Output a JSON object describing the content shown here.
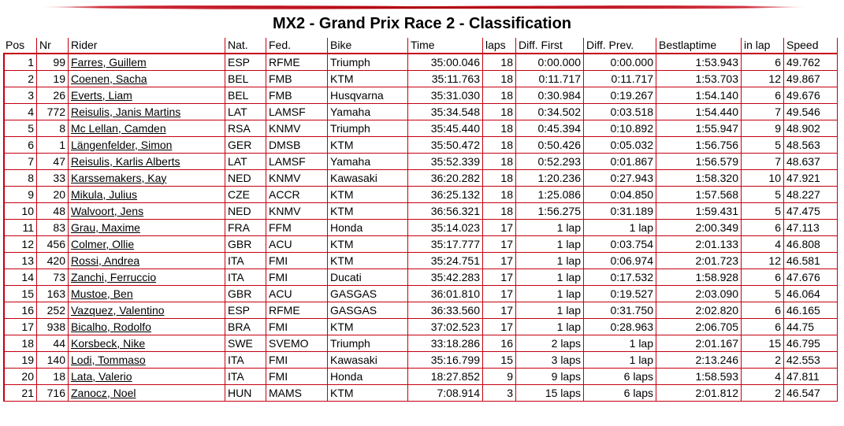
{
  "title": "MX2 - Grand Prix Race 2 - Classification",
  "colors": {
    "accent": "#c4000f",
    "text": "#000000",
    "background": "#ffffff"
  },
  "columns": [
    "Pos",
    "Nr",
    "Rider",
    "Nat.",
    "Fed.",
    "Bike",
    "Time",
    "laps",
    "Diff. First",
    "Diff. Prev.",
    "Bestlaptime",
    "in lap",
    "Speed"
  ],
  "rows": [
    {
      "pos": "1",
      "nr": "99",
      "rider": "Farres, Guillem",
      "nat": "ESP",
      "fed": "RFME",
      "bike": "Triumph",
      "time": "35:00.046",
      "laps": "18",
      "diff_first": "0:00.000",
      "diff_prev": "0:00.000",
      "bestlap": "1:53.943",
      "in_lap": "6",
      "speed": "49.762"
    },
    {
      "pos": "2",
      "nr": "19",
      "rider": "Coenen, Sacha",
      "nat": "BEL",
      "fed": "FMB",
      "bike": "KTM",
      "time": "35:11.763",
      "laps": "18",
      "diff_first": "0:11.717",
      "diff_prev": "0:11.717",
      "bestlap": "1:53.703",
      "in_lap": "12",
      "speed": "49.867"
    },
    {
      "pos": "3",
      "nr": "26",
      "rider": "Everts, Liam",
      "nat": "BEL",
      "fed": "FMB",
      "bike": "Husqvarna",
      "time": "35:31.030",
      "laps": "18",
      "diff_first": "0:30.984",
      "diff_prev": "0:19.267",
      "bestlap": "1:54.140",
      "in_lap": "6",
      "speed": "49.676"
    },
    {
      "pos": "4",
      "nr": "772",
      "rider": "Reisulis, Janis Martins",
      "nat": "LAT",
      "fed": "LAMSF",
      "bike": "Yamaha",
      "time": "35:34.548",
      "laps": "18",
      "diff_first": "0:34.502",
      "diff_prev": "0:03.518",
      "bestlap": "1:54.440",
      "in_lap": "7",
      "speed": "49.546"
    },
    {
      "pos": "5",
      "nr": "8",
      "rider": "Mc Lellan, Camden",
      "nat": "RSA",
      "fed": "KNMV",
      "bike": "Triumph",
      "time": "35:45.440",
      "laps": "18",
      "diff_first": "0:45.394",
      "diff_prev": "0:10.892",
      "bestlap": "1:55.947",
      "in_lap": "9",
      "speed": "48.902"
    },
    {
      "pos": "6",
      "nr": "1",
      "rider": "Längenfelder, Simon",
      "nat": "GER",
      "fed": "DMSB",
      "bike": "KTM",
      "time": "35:50.472",
      "laps": "18",
      "diff_first": "0:50.426",
      "diff_prev": "0:05.032",
      "bestlap": "1:56.756",
      "in_lap": "5",
      "speed": "48.563"
    },
    {
      "pos": "7",
      "nr": "47",
      "rider": "Reisulis, Karlis Alberts",
      "nat": "LAT",
      "fed": "LAMSF",
      "bike": "Yamaha",
      "time": "35:52.339",
      "laps": "18",
      "diff_first": "0:52.293",
      "diff_prev": "0:01.867",
      "bestlap": "1:56.579",
      "in_lap": "7",
      "speed": "48.637"
    },
    {
      "pos": "8",
      "nr": "33",
      "rider": "Karssemakers, Kay",
      "nat": "NED",
      "fed": "KNMV",
      "bike": "Kawasaki",
      "time": "36:20.282",
      "laps": "18",
      "diff_first": "1:20.236",
      "diff_prev": "0:27.943",
      "bestlap": "1:58.320",
      "in_lap": "10",
      "speed": "47.921"
    },
    {
      "pos": "9",
      "nr": "20",
      "rider": "Mikula, Julius",
      "nat": "CZE",
      "fed": "ACCR",
      "bike": "KTM",
      "time": "36:25.132",
      "laps": "18",
      "diff_first": "1:25.086",
      "diff_prev": "0:04.850",
      "bestlap": "1:57.568",
      "in_lap": "5",
      "speed": "48.227"
    },
    {
      "pos": "10",
      "nr": "48",
      "rider": "Walvoort, Jens",
      "nat": "NED",
      "fed": "KNMV",
      "bike": "KTM",
      "time": "36:56.321",
      "laps": "18",
      "diff_first": "1:56.275",
      "diff_prev": "0:31.189",
      "bestlap": "1:59.431",
      "in_lap": "5",
      "speed": "47.475"
    },
    {
      "pos": "11",
      "nr": "83",
      "rider": "Grau, Maxime",
      "nat": "FRA",
      "fed": "FFM",
      "bike": "Honda",
      "time": "35:14.023",
      "laps": "17",
      "diff_first": "1 lap",
      "diff_prev": "1 lap",
      "bestlap": "2:00.349",
      "in_lap": "6",
      "speed": "47.113"
    },
    {
      "pos": "12",
      "nr": "456",
      "rider": "Colmer, Ollie",
      "nat": "GBR",
      "fed": "ACU",
      "bike": "KTM",
      "time": "35:17.777",
      "laps": "17",
      "diff_first": "1 lap",
      "diff_prev": "0:03.754",
      "bestlap": "2:01.133",
      "in_lap": "4",
      "speed": "46.808"
    },
    {
      "pos": "13",
      "nr": "420",
      "rider": "Rossi, Andrea",
      "nat": "ITA",
      "fed": "FMI",
      "bike": "KTM",
      "time": "35:24.751",
      "laps": "17",
      "diff_first": "1 lap",
      "diff_prev": "0:06.974",
      "bestlap": "2:01.723",
      "in_lap": "12",
      "speed": "46.581"
    },
    {
      "pos": "14",
      "nr": "73",
      "rider": "Zanchi, Ferruccio",
      "nat": "ITA",
      "fed": "FMI",
      "bike": "Ducati",
      "time": "35:42.283",
      "laps": "17",
      "diff_first": "1 lap",
      "diff_prev": "0:17.532",
      "bestlap": "1:58.928",
      "in_lap": "6",
      "speed": "47.676"
    },
    {
      "pos": "15",
      "nr": "163",
      "rider": "Mustoe, Ben",
      "nat": "GBR",
      "fed": "ACU",
      "bike": "GASGAS",
      "time": "36:01.810",
      "laps": "17",
      "diff_first": "1 lap",
      "diff_prev": "0:19.527",
      "bestlap": "2:03.090",
      "in_lap": "5",
      "speed": "46.064"
    },
    {
      "pos": "16",
      "nr": "252",
      "rider": "Vazquez, Valentino",
      "nat": "ESP",
      "fed": "RFME",
      "bike": "GASGAS",
      "time": "36:33.560",
      "laps": "17",
      "diff_first": "1 lap",
      "diff_prev": "0:31.750",
      "bestlap": "2:02.820",
      "in_lap": "6",
      "speed": "46.165"
    },
    {
      "pos": "17",
      "nr": "938",
      "rider": "Bicalho, Rodolfo",
      "nat": "BRA",
      "fed": "FMI",
      "bike": "KTM",
      "time": "37:02.523",
      "laps": "17",
      "diff_first": "1 lap",
      "diff_prev": "0:28.963",
      "bestlap": "2:06.705",
      "in_lap": "6",
      "speed": "44.75"
    },
    {
      "pos": "18",
      "nr": "44",
      "rider": "Korsbeck, Nike",
      "nat": "SWE",
      "fed": "SVEMO",
      "bike": "Triumph",
      "time": "33:18.286",
      "laps": "16",
      "diff_first": "2 laps",
      "diff_prev": "1 lap",
      "bestlap": "2:01.167",
      "in_lap": "15",
      "speed": "46.795"
    },
    {
      "pos": "19",
      "nr": "140",
      "rider": "Lodi, Tommaso",
      "nat": "ITA",
      "fed": "FMI",
      "bike": "Kawasaki",
      "time": "35:16.799",
      "laps": "15",
      "diff_first": "3 laps",
      "diff_prev": "1 lap",
      "bestlap": "2:13.246",
      "in_lap": "2",
      "speed": "42.553"
    },
    {
      "pos": "20",
      "nr": "18",
      "rider": "Lata, Valerio",
      "nat": "ITA",
      "fed": "FMI",
      "bike": "Honda",
      "time": "18:27.852",
      "laps": "9",
      "diff_first": "9 laps",
      "diff_prev": "6 laps",
      "bestlap": "1:58.593",
      "in_lap": "4",
      "speed": "47.811"
    },
    {
      "pos": "21",
      "nr": "716",
      "rider": "Zanocz, Noel",
      "nat": "HUN",
      "fed": "MAMS",
      "bike": "KTM",
      "time": "7:08.914",
      "laps": "3",
      "diff_first": "15 laps",
      "diff_prev": "6 laps",
      "bestlap": "2:01.812",
      "in_lap": "2",
      "speed": "46.547"
    }
  ]
}
